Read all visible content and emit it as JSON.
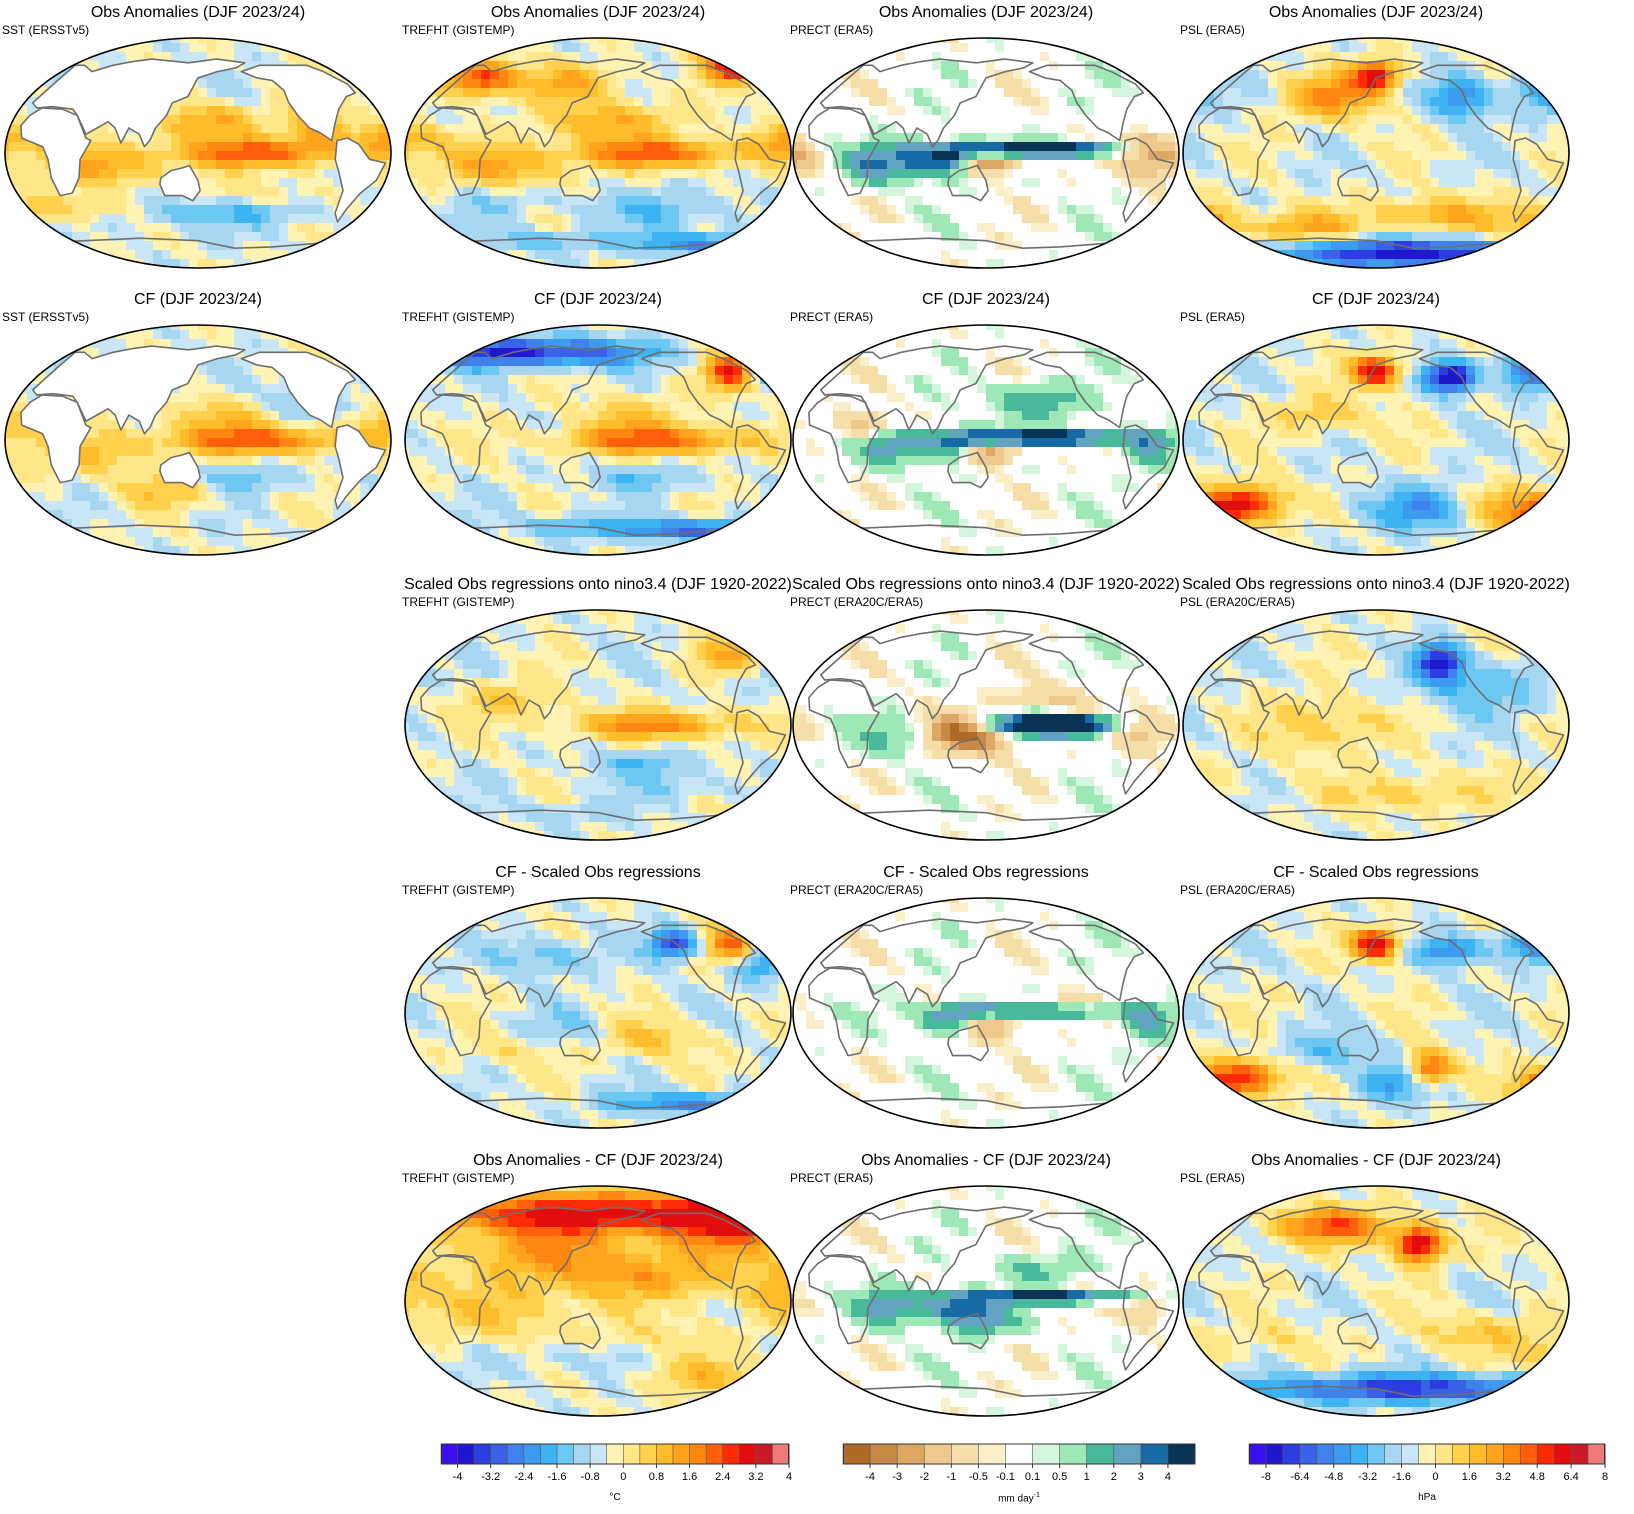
{
  "panels": [
    {
      "row": 0,
      "col": 0,
      "title": "Obs Anomalies (DJF 2023/24)",
      "subtitle": "SST (ERSSTv5)",
      "var": "SST"
    },
    {
      "row": 0,
      "col": 1,
      "title": "Obs Anomalies (DJF 2023/24)",
      "subtitle": "TREFHT (GISTEMP)",
      "var": "TREFHT"
    },
    {
      "row": 0,
      "col": 2,
      "title": "Obs Anomalies (DJF 2023/24)",
      "subtitle": "PRECT (ERA5)",
      "var": "PRECT"
    },
    {
      "row": 0,
      "col": 3,
      "title": "Obs Anomalies (DJF 2023/24)",
      "subtitle": "PSL (ERA5)",
      "var": "PSL"
    },
    {
      "row": 1,
      "col": 0,
      "title": "CF (DJF 2023/24)",
      "subtitle": "SST (ERSSTv5)",
      "var": "SST"
    },
    {
      "row": 1,
      "col": 1,
      "title": "CF (DJF 2023/24)",
      "subtitle": "TREFHT (GISTEMP)",
      "var": "TREFHT"
    },
    {
      "row": 1,
      "col": 2,
      "title": "CF (DJF 2023/24)",
      "subtitle": "PRECT (ERA5)",
      "var": "PRECT"
    },
    {
      "row": 1,
      "col": 3,
      "title": "CF (DJF 2023/24)",
      "subtitle": "PSL (ERA5)",
      "var": "PSL"
    },
    {
      "row": 2,
      "col": 1,
      "title": "Scaled Obs regressions onto nino3.4 (DJF 1920-2022)",
      "subtitle": "TREFHT (GISTEMP)",
      "var": "TREFHT"
    },
    {
      "row": 2,
      "col": 2,
      "title": "Scaled Obs regressions onto nino3.4 (DJF 1920-2022)",
      "subtitle": "PRECT (ERA20C/ERA5)",
      "var": "PRECT"
    },
    {
      "row": 2,
      "col": 3,
      "title": "Scaled Obs regressions onto nino3.4 (DJF 1920-2022)",
      "subtitle": "PSL (ERA20C/ERA5)",
      "var": "PSL"
    },
    {
      "row": 3,
      "col": 1,
      "title": "CF - Scaled Obs regressions",
      "subtitle": "TREFHT (GISTEMP)",
      "var": "TREFHT"
    },
    {
      "row": 3,
      "col": 2,
      "title": "CF - Scaled Obs regressions",
      "subtitle": "PRECT (ERA20C/ERA5)",
      "var": "PRECT"
    },
    {
      "row": 3,
      "col": 3,
      "title": "CF - Scaled Obs regressions",
      "subtitle": "PSL (ERA20C/ERA5)",
      "var": "PSL"
    },
    {
      "row": 4,
      "col": 1,
      "title": "Obs Anomalies - CF (DJF 2023/24)",
      "subtitle": "TREFHT (GISTEMP)",
      "var": "TREFHT"
    },
    {
      "row": 4,
      "col": 2,
      "title": "Obs Anomalies - CF (DJF 2023/24)",
      "subtitle": "PRECT (ERA5)",
      "var": "PRECT"
    },
    {
      "row": 4,
      "col": 3,
      "title": "Obs Anomalies - CF (DJF 2023/24)",
      "subtitle": "PSL (ERA5)",
      "var": "PSL"
    }
  ],
  "chart_data": [
    {
      "type": "heatmap",
      "name": "temperature-colorbar",
      "unit": "°C",
      "tick_labels": [
        "-4",
        "-3.2",
        "-2.4",
        "-1.6",
        "-0.8",
        "0",
        "0.8",
        "1.6",
        "2.4",
        "3.2",
        "4"
      ],
      "levels": [
        -4,
        -3.6,
        -3.2,
        -2.8,
        -2.4,
        -2,
        -1.6,
        -1.2,
        -0.8,
        -0.4,
        0,
        0.4,
        0.8,
        1.2,
        1.6,
        2,
        2.4,
        2.8,
        3.2,
        3.6,
        4
      ],
      "colors": [
        "#3a10f0",
        "#1f18cf",
        "#2d3ee0",
        "#3a62e6",
        "#3f82ec",
        "#3d9aef",
        "#3db3f1",
        "#6cc7f3",
        "#a6d6f0",
        "#c9e6f6",
        "#fff3b4",
        "#ffe789",
        "#ffd14c",
        "#ffbc2a",
        "#ffa41c",
        "#ff8711",
        "#ff5f0a",
        "#ff2b06",
        "#e40d0d",
        "#c91a27",
        "#f07a7a"
      ]
    },
    {
      "type": "heatmap",
      "name": "precipitation-colorbar",
      "unit": "mm day",
      "unit_superscript": "-1",
      "tick_labels": [
        "-4",
        "-3",
        "-2",
        "-1",
        "-0.5",
        "-0.1",
        "0.1",
        "0.5",
        "1",
        "2",
        "3",
        "4"
      ],
      "levels": [
        -4,
        -3,
        -2,
        -1,
        -0.5,
        -0.1,
        0.1,
        0.5,
        1,
        2,
        3,
        4
      ],
      "colors": [
        "#b06a28",
        "#c88846",
        "#dea765",
        "#efc88c",
        "#f6dea8",
        "#fbefc9",
        "#ffffff",
        "#d4f6dc",
        "#9de8b6",
        "#48b99b",
        "#62a3c2",
        "#176aa5",
        "#0b3356"
      ]
    },
    {
      "type": "heatmap",
      "name": "pressure-colorbar",
      "unit": "hPa",
      "tick_labels": [
        "-8",
        "-6.4",
        "-4.8",
        "-3.2",
        "-1.6",
        "0",
        "1.6",
        "3.2",
        "4.8",
        "6.4",
        "8"
      ],
      "levels": [
        -8,
        -7.2,
        -6.4,
        -5.6,
        -4.8,
        -4,
        -3.2,
        -2.4,
        -1.6,
        -0.8,
        0,
        0.8,
        1.6,
        2.4,
        3.2,
        4,
        4.8,
        5.6,
        6.4,
        7.2,
        8
      ],
      "colors": [
        "#3a10f0",
        "#1f18cf",
        "#2d3ee0",
        "#3a62e6",
        "#3f82ec",
        "#3d9aef",
        "#3db3f1",
        "#6cc7f3",
        "#a6d6f0",
        "#c9e6f6",
        "#fff3b4",
        "#ffe789",
        "#ffd14c",
        "#ffbc2a",
        "#ffa41c",
        "#ff8711",
        "#ff5f0a",
        "#ff2b06",
        "#e40d0d",
        "#c91a27",
        "#f07a7a"
      ]
    }
  ]
}
